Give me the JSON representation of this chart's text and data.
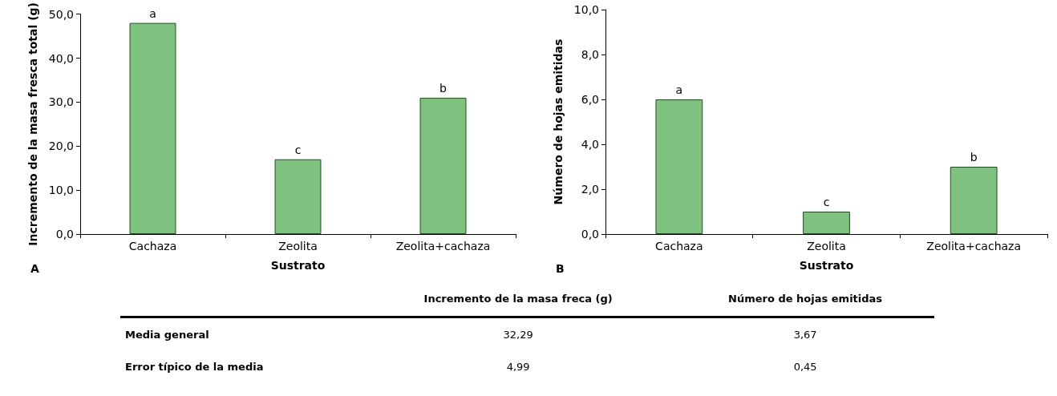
{
  "chart_data": [
    {
      "type": "bar",
      "xlabel": "Sustrato",
      "ylabel": "Incremento de la masa fresca total (g)",
      "categories": [
        "Cachaza",
        "Zeolita",
        "Zeolita+cachaza"
      ],
      "values": [
        48,
        17,
        31
      ],
      "color": "#7fc27f",
      "ylim": [
        0,
        50
      ],
      "yticks": [
        {
          "value": 0,
          "label": "0,0"
        },
        {
          "value": 10,
          "label": "10,0"
        },
        {
          "value": 20,
          "label": "20,0"
        },
        {
          "value": 30,
          "label": "30,0"
        },
        {
          "value": 40,
          "label": "40,0"
        },
        {
          "value": 50,
          "label": "50,0"
        }
      ],
      "grid": false,
      "annotations": [
        {
          "text": "a",
          "x": "Cachaza",
          "y": 48
        },
        {
          "text": "c",
          "x": "Zeolita",
          "y": 17
        },
        {
          "text": "b",
          "x": "Zeolita+cachaza",
          "y": 31
        },
        "A"
      ]
    },
    {
      "type": "bar",
      "xlabel": "Sustrato",
      "ylabel": "Número de hojas emitidas",
      "categories": [
        "Cachaza",
        "Zeolita",
        "Zeolita+cachaza"
      ],
      "values": [
        6,
        1,
        3
      ],
      "color": "#7fc27f",
      "ylim": [
        0,
        10
      ],
      "yticks": [
        {
          "value": 0,
          "label": "0,0"
        },
        {
          "value": 2,
          "label": "2,0"
        },
        {
          "value": 4,
          "label": "4,0"
        },
        {
          "value": 6,
          "label": "6,0"
        },
        {
          "value": 8,
          "label": "8,0"
        },
        {
          "value": 10,
          "label": "10,0"
        }
      ],
      "grid": false,
      "annotations": [
        {
          "text": "a",
          "x": "Cachaza",
          "y": 6
        },
        {
          "text": "c",
          "x": "Zeolita",
          "y": 1
        },
        {
          "text": "b",
          "x": "Zeolita+cachaza",
          "y": 3
        },
        "B"
      ]
    },
    {
      "type": "other",
      "annotations": [
        "Incremento de la masa freca (g)",
        "Número de hojas emitidas",
        "Media general",
        "32,29",
        "3,67",
        "Error típico de la media",
        "4,99",
        "0,45"
      ]
    }
  ]
}
